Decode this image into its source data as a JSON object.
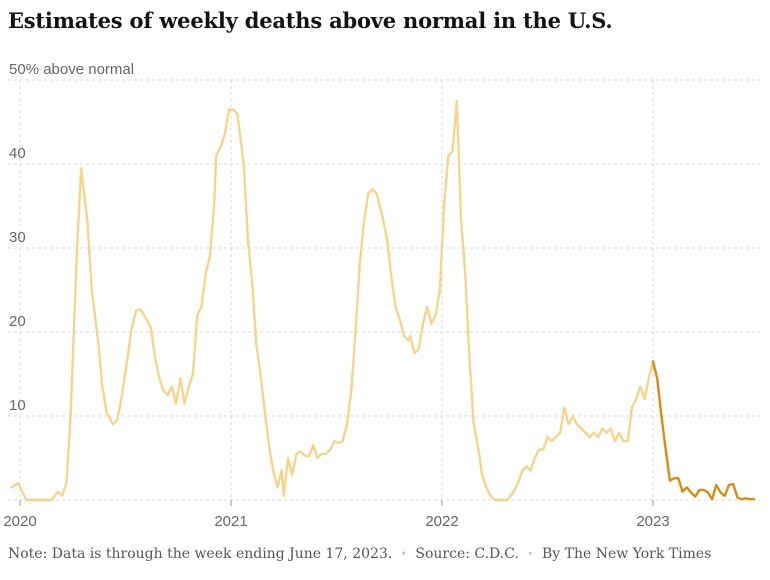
{
  "title": "Estimates of weekly deaths above normal in the U.S.",
  "footer": {
    "note": "Note: Data is through the week ending June 17, 2023.",
    "source": "Source: C.D.C.",
    "byline": "By The New York Times",
    "separator": "•"
  },
  "colors": {
    "historical_line": "#f5d48b",
    "recent_line": "#d88d11",
    "grid": "#d9d9d9",
    "text": "#666666"
  },
  "chart_data": {
    "type": "line",
    "title": "Estimates of weekly deaths above normal in the U.S.",
    "ylabel": "",
    "ylim": [
      0,
      50
    ],
    "yticks": [
      {
        "value": 50,
        "label": "50% above normal"
      },
      {
        "value": 40,
        "label": "40"
      },
      {
        "value": 30,
        "label": "30"
      },
      {
        "value": 20,
        "label": "20"
      },
      {
        "value": 10,
        "label": "10"
      }
    ],
    "xlim": [
      2020.0,
      2023.5
    ],
    "xticks": [
      {
        "value": 2020,
        "label": "2020"
      },
      {
        "value": 2021,
        "label": "2021"
      },
      {
        "value": 2022,
        "label": "2022"
      },
      {
        "value": 2023,
        "label": "2023"
      }
    ],
    "grid": true,
    "series": [
      {
        "name": "",
        "style": "historical",
        "points": [
          [
            2019.96,
            1.5
          ],
          [
            2019.99,
            2.0
          ],
          [
            2020.03,
            0
          ],
          [
            2020.08,
            0
          ],
          [
            2020.15,
            0
          ],
          [
            2020.18,
            1.0
          ],
          [
            2020.2,
            0.5
          ],
          [
            2020.22,
            2.0
          ],
          [
            2020.24,
            10.0
          ],
          [
            2020.27,
            30.0
          ],
          [
            2020.29,
            39.5
          ],
          [
            2020.32,
            33.0
          ],
          [
            2020.34,
            25.0
          ],
          [
            2020.37,
            19.0
          ],
          [
            2020.39,
            13.5
          ],
          [
            2020.41,
            10.5
          ],
          [
            2020.44,
            9.0
          ],
          [
            2020.46,
            9.5
          ],
          [
            2020.48,
            12.0
          ],
          [
            2020.51,
            17.0
          ],
          [
            2020.53,
            20.5
          ],
          [
            2020.55,
            22.5
          ],
          [
            2020.57,
            22.7
          ],
          [
            2020.6,
            21.5
          ],
          [
            2020.62,
            20.5
          ],
          [
            2020.64,
            17.0
          ],
          [
            2020.66,
            14.5
          ],
          [
            2020.68,
            13.0
          ],
          [
            2020.7,
            12.5
          ],
          [
            2020.72,
            13.5
          ],
          [
            2020.74,
            11.5
          ],
          [
            2020.76,
            14.5
          ],
          [
            2020.78,
            11.5
          ],
          [
            2020.8,
            13.5
          ],
          [
            2020.82,
            15.0
          ],
          [
            2020.84,
            22.0
          ],
          [
            2020.86,
            23.0
          ],
          [
            2020.88,
            27.0
          ],
          [
            2020.9,
            29.0
          ],
          [
            2020.92,
            35.0
          ],
          [
            2020.93,
            41.0
          ],
          [
            2020.95,
            42.0
          ],
          [
            2020.97,
            43.5
          ],
          [
            2020.99,
            46.5
          ],
          [
            2021.01,
            46.5
          ],
          [
            2021.03,
            46.0
          ],
          [
            2021.06,
            40.0
          ],
          [
            2021.08,
            31.0
          ],
          [
            2021.1,
            26.0
          ],
          [
            2021.12,
            18.5
          ],
          [
            2021.14,
            15.0
          ],
          [
            2021.16,
            10.5
          ],
          [
            2021.18,
            6.5
          ],
          [
            2021.2,
            3.5
          ],
          [
            2021.22,
            1.5
          ],
          [
            2021.24,
            3.5
          ],
          [
            2021.25,
            0.5
          ],
          [
            2021.27,
            5.0
          ],
          [
            2021.29,
            3.0
          ],
          [
            2021.31,
            5.5
          ],
          [
            2021.33,
            5.8
          ],
          [
            2021.35,
            5.3
          ],
          [
            2021.37,
            5.2
          ],
          [
            2021.39,
            6.5
          ],
          [
            2021.41,
            5.0
          ],
          [
            2021.43,
            5.5
          ],
          [
            2021.45,
            5.5
          ],
          [
            2021.47,
            6.0
          ],
          [
            2021.49,
            7.0
          ],
          [
            2021.51,
            6.8
          ],
          [
            2021.53,
            7.0
          ],
          [
            2021.55,
            9.0
          ],
          [
            2021.57,
            13.0
          ],
          [
            2021.59,
            20.0
          ],
          [
            2021.61,
            28.0
          ],
          [
            2021.63,
            33.0
          ],
          [
            2021.65,
            36.5
          ],
          [
            2021.67,
            37.0
          ],
          [
            2021.69,
            36.5
          ],
          [
            2021.72,
            33.5
          ],
          [
            2021.74,
            31.0
          ],
          [
            2021.76,
            26.5
          ],
          [
            2021.78,
            23.0
          ],
          [
            2021.8,
            21.5
          ],
          [
            2021.82,
            19.5
          ],
          [
            2021.84,
            19.0
          ],
          [
            2021.85,
            19.5
          ],
          [
            2021.87,
            17.5
          ],
          [
            2021.89,
            18.0
          ],
          [
            2021.91,
            21.0
          ],
          [
            2021.93,
            23.0
          ],
          [
            2021.95,
            21.0
          ],
          [
            2021.97,
            22.0
          ],
          [
            2021.99,
            25.0
          ],
          [
            2022.01,
            35.0
          ],
          [
            2022.03,
            41.0
          ],
          [
            2022.05,
            41.5
          ],
          [
            2022.07,
            47.5
          ],
          [
            2022.09,
            33.5
          ],
          [
            2022.11,
            27.0
          ],
          [
            2022.13,
            17.0
          ],
          [
            2022.15,
            9.0
          ],
          [
            2022.17,
            6.5
          ],
          [
            2022.19,
            3.0
          ],
          [
            2022.21,
            1.5
          ],
          [
            2022.23,
            0.5
          ],
          [
            2022.25,
            0
          ],
          [
            2022.31,
            0
          ],
          [
            2022.34,
            1.0
          ],
          [
            2022.36,
            2.0
          ],
          [
            2022.38,
            3.5
          ],
          [
            2022.4,
            4.0
          ],
          [
            2022.42,
            3.5
          ],
          [
            2022.44,
            5.0
          ],
          [
            2022.46,
            6.0
          ],
          [
            2022.48,
            6.0
          ],
          [
            2022.5,
            7.5
          ],
          [
            2022.52,
            7.0
          ],
          [
            2022.54,
            7.5
          ],
          [
            2022.56,
            8.0
          ],
          [
            2022.58,
            11.0
          ],
          [
            2022.6,
            9.0
          ],
          [
            2022.62,
            10.0
          ],
          [
            2022.64,
            9.0
          ],
          [
            2022.66,
            8.5
          ],
          [
            2022.68,
            8.0
          ],
          [
            2022.7,
            7.5
          ],
          [
            2022.72,
            8.0
          ],
          [
            2022.74,
            7.5
          ],
          [
            2022.76,
            8.5
          ],
          [
            2022.78,
            8.0
          ],
          [
            2022.8,
            8.5
          ],
          [
            2022.82,
            7.0
          ],
          [
            2022.84,
            8.0
          ],
          [
            2022.86,
            7.0
          ],
          [
            2022.88,
            7.0
          ],
          [
            2022.9,
            11.0
          ],
          [
            2022.92,
            12.0
          ],
          [
            2022.94,
            13.5
          ],
          [
            2022.96,
            12.0
          ],
          [
            2022.98,
            14.5
          ],
          [
            2023.0,
            16.5
          ]
        ]
      },
      {
        "name": "",
        "style": "recent",
        "points": [
          [
            2023.0,
            16.5
          ],
          [
            2023.02,
            14.5
          ],
          [
            2023.04,
            10.0
          ],
          [
            2023.06,
            6.0
          ],
          [
            2023.08,
            2.3
          ],
          [
            2023.1,
            2.6
          ],
          [
            2023.12,
            2.6
          ],
          [
            2023.14,
            1.0
          ],
          [
            2023.16,
            1.5
          ],
          [
            2023.18,
            0.9
          ],
          [
            2023.2,
            0.4
          ],
          [
            2023.22,
            1.2
          ],
          [
            2023.24,
            1.2
          ],
          [
            2023.26,
            0.9
          ],
          [
            2023.28,
            0.1
          ],
          [
            2023.3,
            1.8
          ],
          [
            2023.32,
            0.9
          ],
          [
            2023.34,
            0.5
          ],
          [
            2023.36,
            1.8
          ],
          [
            2023.38,
            1.9
          ],
          [
            2023.4,
            0.3
          ],
          [
            2023.42,
            0.1
          ],
          [
            2023.44,
            0.2
          ],
          [
            2023.46,
            0.1
          ],
          [
            2023.48,
            0.1
          ]
        ]
      }
    ]
  }
}
